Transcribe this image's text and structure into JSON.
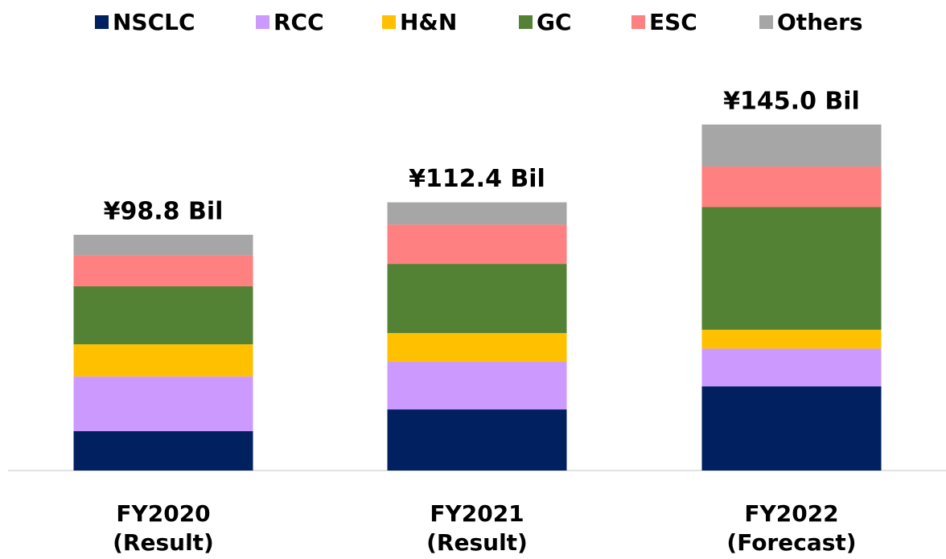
{
  "chart_data": {
    "type": "stacked_bar",
    "categories": [
      [
        "FY2020",
        "(Result)"
      ],
      [
        "FY2021",
        "(Result)"
      ],
      [
        "FY2022",
        "(Forecast)"
      ]
    ],
    "series": [
      {
        "name": "NSCLC",
        "color": "#002060",
        "values": [
          16.5,
          25.6,
          35.3
        ]
      },
      {
        "name": "RCC",
        "color": "#cc99ff",
        "values": [
          22.9,
          19.9,
          15.8
        ]
      },
      {
        "name": "H&N",
        "color": "#ffc000",
        "values": [
          13.5,
          12.1,
          7.9
        ]
      },
      {
        "name": "GC",
        "color": "#548235",
        "values": [
          24.3,
          29.0,
          51.4
        ]
      },
      {
        "name": "ESC",
        "color": "#ff8080",
        "values": [
          13.1,
          16.5,
          17.0
        ]
      },
      {
        "name": "Others",
        "color": "#a6a6a6",
        "values": [
          8.5,
          9.3,
          17.6
        ]
      }
    ],
    "totals": [
      98.8,
      112.4,
      145.0
    ],
    "total_labels": [
      "¥98.8  Bil",
      "¥112.4  Bil",
      "¥145.0  Bil"
    ],
    "ylim": [
      0,
      150
    ],
    "legend": "top"
  }
}
